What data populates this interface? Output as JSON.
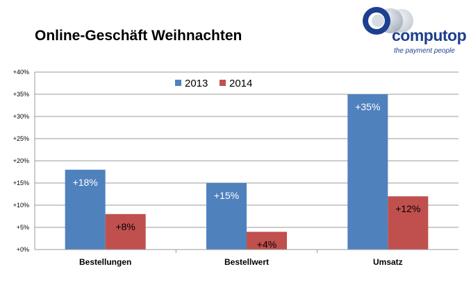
{
  "page": {
    "title": "Online-Geschäft Weihnachten"
  },
  "logo": {
    "wordmark": "computop",
    "tagline": "the payment people",
    "color": "#1d3f8f"
  },
  "chart_data": {
    "type": "bar",
    "title": "Online-Geschäft Weihnachten",
    "categories": [
      "Bestellungen",
      "Bestellwert",
      "Umsatz"
    ],
    "series": [
      {
        "name": "2013",
        "values": [
          18,
          15,
          35
        ],
        "labels": [
          "+18%",
          "+15%",
          "+35%"
        ],
        "color": "#4f81bd",
        "label_color": "#ffffff"
      },
      {
        "name": "2014",
        "values": [
          8,
          4,
          12
        ],
        "labels": [
          "+8%",
          "+4%",
          "+12%"
        ],
        "color": "#c0504d",
        "label_color": "#000000"
      }
    ],
    "ylim": [
      0,
      40
    ],
    "yticks": [
      0,
      5,
      10,
      15,
      20,
      25,
      30,
      35,
      40
    ],
    "ytick_labels": [
      "+0%",
      "+5%",
      "+10%",
      "+15%",
      "+20%",
      "+25%",
      "+30%",
      "+35%",
      "+40%"
    ],
    "grid": true,
    "legend_position": "top-center",
    "xlabel": "",
    "ylabel": ""
  }
}
